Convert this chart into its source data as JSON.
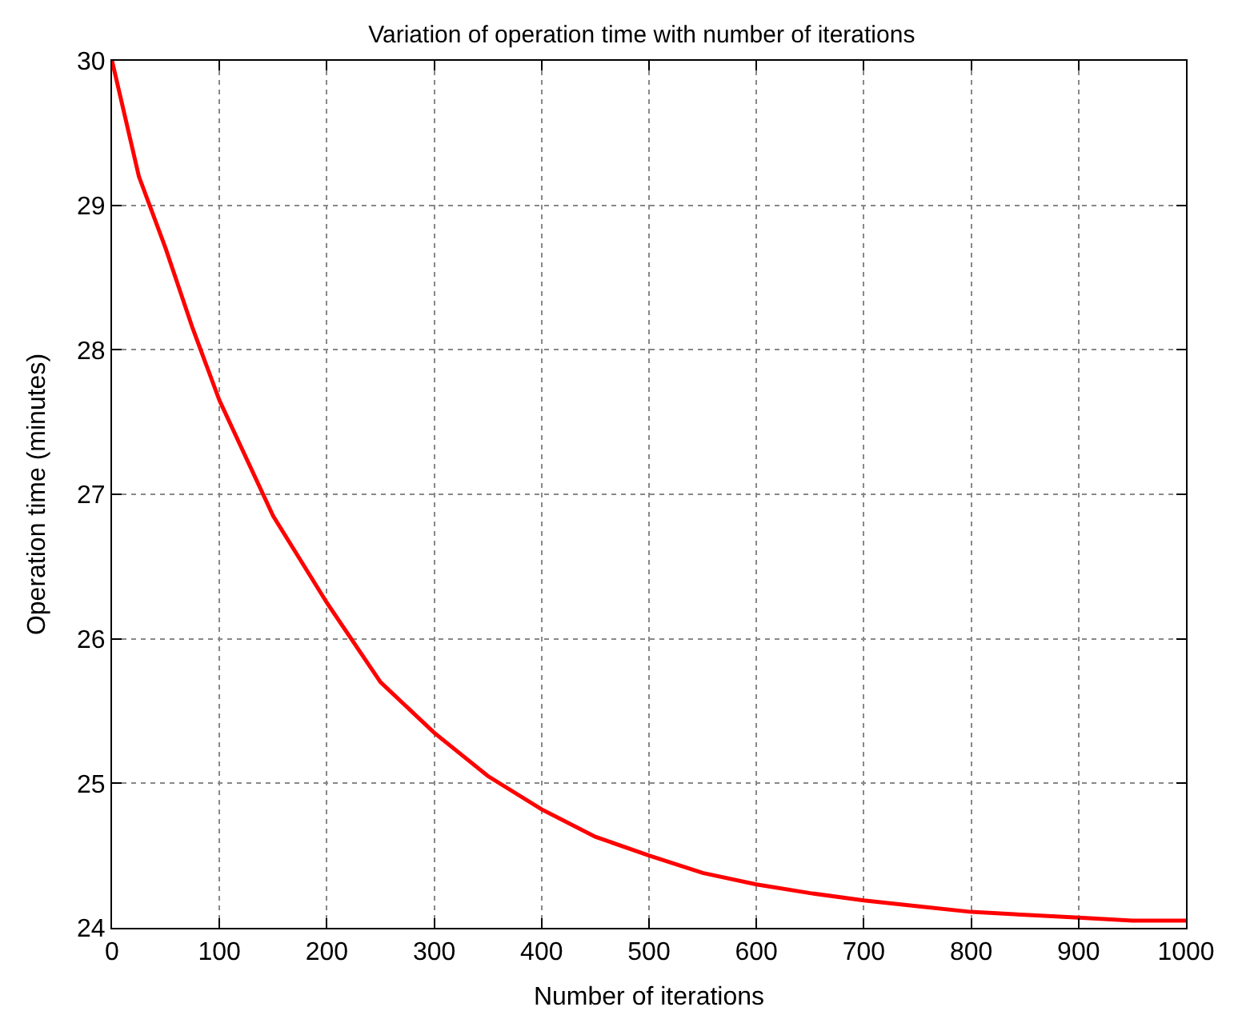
{
  "chart_data": {
    "type": "line",
    "title": "Variation of operation time with number of iterations",
    "xlabel": "Number of iterations",
    "ylabel": "Operation time (minutes)",
    "x": [
      0,
      25,
      50,
      75,
      100,
      150,
      200,
      250,
      300,
      350,
      400,
      450,
      500,
      550,
      600,
      650,
      700,
      750,
      800,
      850,
      900,
      950,
      1000
    ],
    "series": [
      {
        "color": "#ff0000",
        "values": [
          30,
          29.2,
          28.7,
          28.15,
          27.65,
          26.85,
          26.25,
          25.7,
          25.35,
          25.05,
          24.82,
          24.63,
          24.5,
          24.38,
          24.3,
          24.24,
          24.19,
          24.15,
          24.11,
          24.09,
          24.07,
          24.05,
          24.05
        ]
      }
    ],
    "xlim": [
      0,
      1000
    ],
    "xticks": [
      0,
      100,
      200,
      300,
      400,
      500,
      600,
      700,
      800,
      900,
      1000
    ],
    "ylim": [
      24,
      30
    ],
    "yticks": [
      24,
      25,
      26,
      27,
      28,
      29,
      30
    ],
    "grid": true,
    "legend": false,
    "marker": "none",
    "line_style": "solid"
  }
}
